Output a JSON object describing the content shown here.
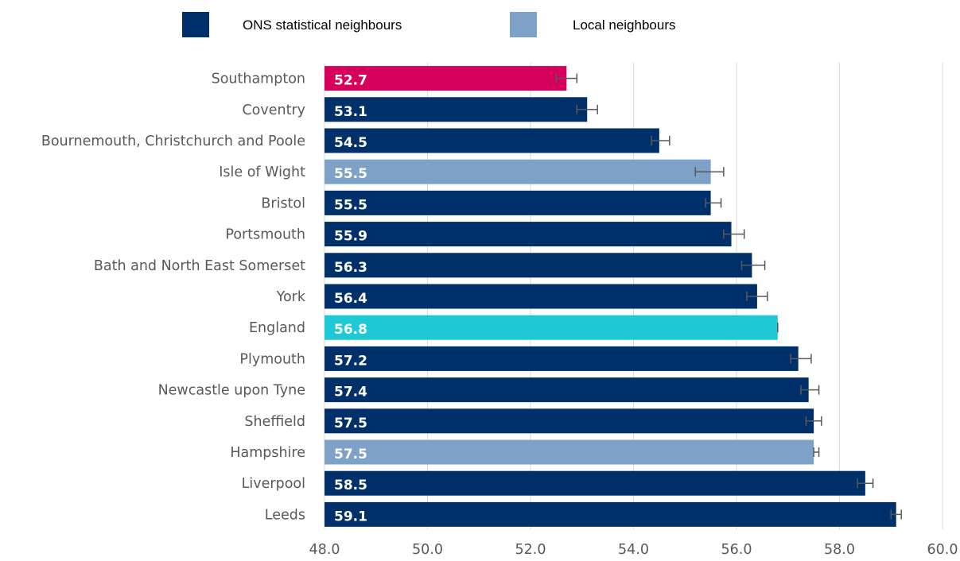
{
  "legend": [
    {
      "label": "ONS statistical neighbours",
      "color": "#003069"
    },
    {
      "label": "Local neighbours",
      "color": "#7ea1c8"
    }
  ],
  "chart_data": {
    "type": "bar",
    "orientation": "horizontal",
    "title": "",
    "xlabel": "",
    "ylabel": "",
    "xlim": [
      48.0,
      60.0
    ],
    "x_ticks": [
      48.0,
      50.0,
      52.0,
      54.0,
      56.0,
      58.0,
      60.0
    ],
    "x_tick_labels": [
      "48.0",
      "50.0",
      "52.0",
      "54.0",
      "56.0",
      "58.0",
      "60.0"
    ],
    "grid": "vertical",
    "legend_position": "top",
    "categories": [
      "Southampton",
      "Coventry",
      "Bournemouth, Christchurch and Poole",
      "Isle of Wight",
      "Bristol",
      "Portsmouth",
      "Bath and North East Somerset",
      "York",
      "England",
      "Plymouth",
      "Newcastle upon Tyne",
      "Sheffield",
      "Hampshire",
      "Liverpool",
      "Leeds"
    ],
    "values": [
      52.7,
      53.1,
      54.5,
      55.5,
      55.5,
      55.9,
      56.3,
      56.4,
      56.8,
      57.2,
      57.4,
      57.5,
      57.5,
      58.5,
      59.1
    ],
    "data_labels": [
      "52.7",
      "53.1",
      "54.5",
      "55.5",
      "55.5",
      "55.9",
      "56.3",
      "56.4",
      "56.8",
      "57.2",
      "57.4",
      "57.5",
      "57.5",
      "58.5",
      "59.1"
    ],
    "error_low": [
      52.5,
      52.9,
      54.35,
      55.2,
      55.4,
      55.75,
      56.1,
      56.2,
      56.8,
      57.05,
      57.25,
      57.35,
      57.5,
      58.35,
      59.0
    ],
    "error_high": [
      52.9,
      53.3,
      54.7,
      55.75,
      55.7,
      56.15,
      56.55,
      56.6,
      56.8,
      57.45,
      57.6,
      57.65,
      57.6,
      58.65,
      59.2
    ],
    "bar_colors": [
      "#d6005c",
      "#003069",
      "#003069",
      "#7ea1c8",
      "#003069",
      "#003069",
      "#003069",
      "#003069",
      "#1ec8d4",
      "#003069",
      "#003069",
      "#003069",
      "#7ea1c8",
      "#003069",
      "#003069"
    ],
    "colors": {
      "highlight": "#d6005c",
      "ons": "#003069",
      "local": "#7ea1c8",
      "england": "#1ec8d4"
    }
  }
}
